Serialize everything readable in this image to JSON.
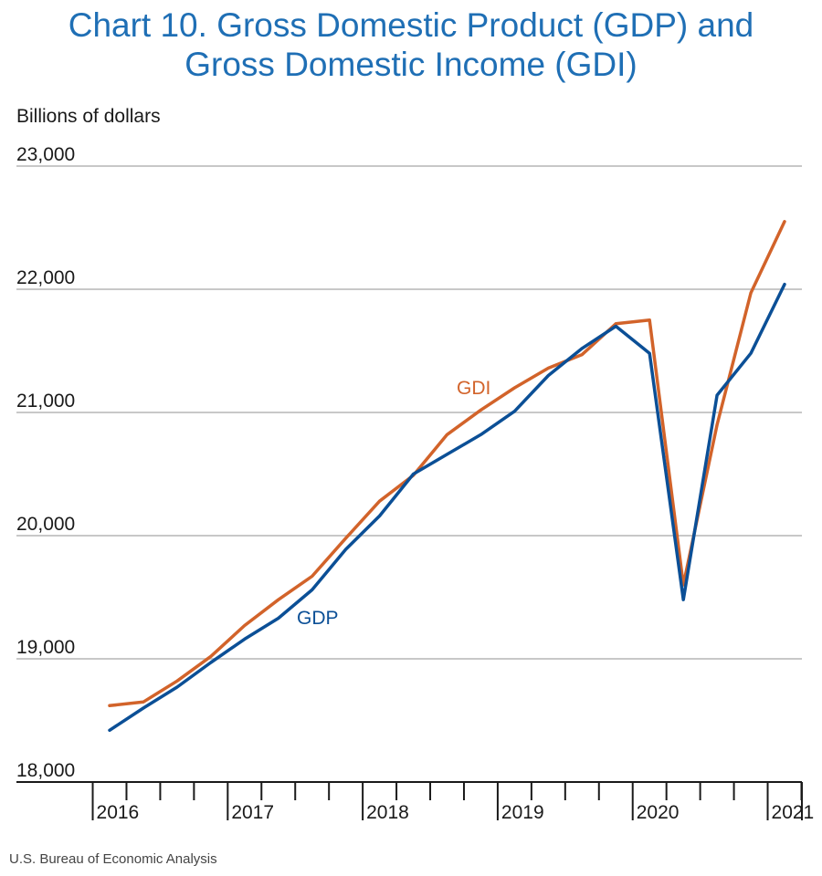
{
  "title_line1": "Chart 10. Gross Domestic Product (GDP) and",
  "title_line2": "Gross Domestic Income (GDI)",
  "source": "U.S. Bureau of Economic Analysis",
  "colors": {
    "gdp": "#0b4f96",
    "gdi": "#d2632a",
    "title": "#1f6fb5",
    "grid": "#c8c8c8"
  },
  "chart_data": {
    "type": "line",
    "ylabel": "Billions of dollars",
    "xlabel": "",
    "ylim": [
      18000,
      23000
    ],
    "yticks": [
      18000,
      19000,
      20000,
      21000,
      22000,
      23000
    ],
    "ytick_labels": [
      "18,000",
      "19,000",
      "20,000",
      "21,000",
      "22,000",
      "23,000"
    ],
    "years": [
      "2016",
      "2017",
      "2018",
      "2019",
      "2020",
      "2021"
    ],
    "x_quarters": [
      "2016Q1",
      "2016Q2",
      "2016Q3",
      "2016Q4",
      "2017Q1",
      "2017Q2",
      "2017Q3",
      "2017Q4",
      "2018Q1",
      "2018Q2",
      "2018Q3",
      "2018Q4",
      "2019Q1",
      "2019Q2",
      "2019Q3",
      "2019Q4",
      "2020Q1",
      "2020Q2",
      "2020Q3",
      "2020Q4",
      "2021Q1"
    ],
    "grid": true,
    "legend": "inline labels",
    "series": [
      {
        "name": "GDP",
        "values": [
          18420,
          18600,
          18770,
          18970,
          19160,
          19330,
          19560,
          19890,
          20160,
          20500,
          20660,
          20820,
          21010,
          21300,
          21520,
          21700,
          21480,
          19480,
          21140,
          21480,
          22040
        ]
      },
      {
        "name": "GDI",
        "values": [
          18620,
          18650,
          18820,
          19020,
          19270,
          19480,
          19670,
          19980,
          20280,
          20490,
          20820,
          21020,
          21200,
          21360,
          21470,
          21720,
          21750,
          19600,
          20900,
          21970,
          22550
        ]
      }
    ]
  }
}
